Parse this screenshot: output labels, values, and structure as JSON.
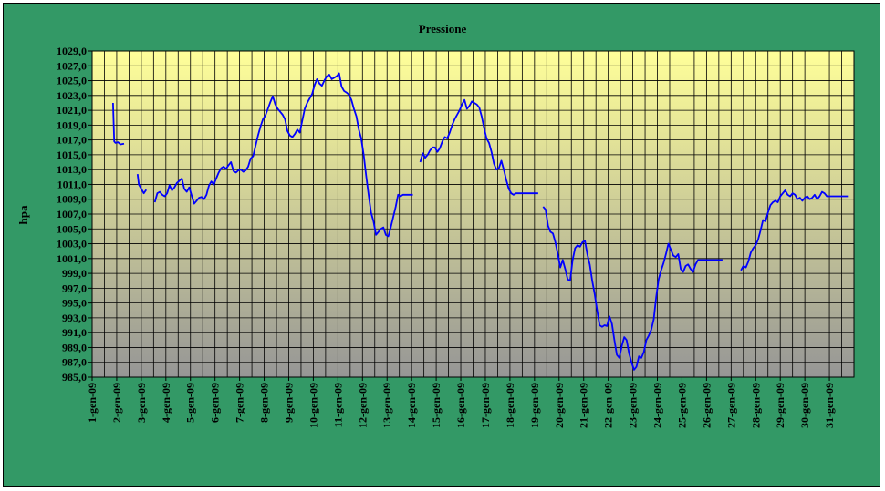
{
  "chart_data": {
    "type": "line",
    "title": "Pressione",
    "ylabel": "hpa",
    "xlabel": "",
    "ylim": [
      985,
      1029
    ],
    "y_tick_step": 2,
    "y_ticks": [
      "985,0",
      "987,0",
      "989,0",
      "991,0",
      "993,0",
      "995,0",
      "997,0",
      "999,0",
      "1001,0",
      "1003,0",
      "1005,0",
      "1007,0",
      "1009,0",
      "1011,0",
      "1013,0",
      "1015,0",
      "1017,0",
      "1019,0",
      "1021,0",
      "1023,0",
      "1025,0",
      "1027,0",
      "1029,0"
    ],
    "x_labels": [
      "1-gen-09",
      "2-gen-09",
      "3-gen-09",
      "4-gen-09",
      "5-gen-09",
      "6-gen-09",
      "7-gen-09",
      "8-gen-09",
      "9-gen-09",
      "10-gen-09",
      "11-gen-09",
      "12-gen-09",
      "13-gen-09",
      "14-gen-09",
      "15-gen-09",
      "16-gen-09",
      "17-gen-09",
      "18-gen-09",
      "19-gen-09",
      "20-gen-09",
      "21-gen-09",
      "22-gen-09",
      "23-gen-09",
      "24-gen-09",
      "25-gen-09",
      "26-gen-09",
      "27-gen-09",
      "28-gen-09",
      "29-gen-09",
      "30-gen-09",
      "31-gen-09"
    ],
    "grid": true,
    "line_color": "#0000ff",
    "frame_color": "#339966",
    "gradient_top": "#ffff99",
    "gradient_bottom": "#969696",
    "segments": [
      {
        "x": [
          1.85,
          1.9,
          1.95,
          2.05,
          2.15,
          2.3
        ],
        "y": [
          1022,
          1016.8,
          1016.6,
          1016.7,
          1016.4,
          1016.5
        ]
      },
      {
        "x": [
          2.85,
          2.9,
          3.0,
          3.1,
          3.2
        ],
        "y": [
          1012.4,
          1011.0,
          1010.4,
          1009.8,
          1010.3
        ]
      },
      {
        "x": [
          3.55,
          3.65,
          3.75,
          3.85,
          3.95,
          4.05,
          4.15,
          4.25,
          4.35,
          4.45,
          4.55,
          4.65,
          4.75,
          4.85,
          4.95,
          5.05,
          5.15,
          5.25,
          5.35,
          5.45,
          5.55,
          5.65,
          5.75,
          5.85,
          5.95,
          6.05,
          6.15,
          6.25,
          6.35,
          6.45,
          6.55,
          6.65,
          6.75,
          6.85,
          6.95,
          7.05,
          7.15,
          7.25,
          7.35,
          7.45,
          7.55,
          7.65,
          7.75,
          7.85,
          7.95,
          8.05,
          8.15,
          8.25,
          8.35,
          8.45,
          8.55,
          8.65,
          8.75,
          8.85,
          8.95,
          9.05,
          9.15,
          9.25,
          9.35,
          9.45,
          9.55,
          9.65,
          9.75,
          9.85,
          9.95,
          10.05,
          10.15,
          10.25,
          10.35,
          10.45,
          10.55,
          10.65,
          10.75,
          10.85,
          10.95,
          11.05,
          11.15,
          11.25,
          11.35,
          11.45,
          11.55,
          11.65,
          11.75,
          11.85,
          11.95,
          12.05,
          12.15,
          12.25,
          12.35,
          12.45,
          12.55,
          12.65,
          12.75,
          12.85,
          12.95,
          13.05,
          13.15,
          13.25,
          13.35,
          13.45,
          13.55,
          13.65,
          13.75,
          13.85,
          13.95,
          14.05
        ],
        "y": [
          1008.6,
          1009.8,
          1010.0,
          1009.6,
          1009.4,
          1009.8,
          1010.9,
          1010.2,
          1010.6,
          1011.2,
          1011.5,
          1011.8,
          1010.4,
          1010.0,
          1010.6,
          1009.5,
          1008.4,
          1008.8,
          1009.2,
          1009.3,
          1009.0,
          1009.6,
          1010.8,
          1011.4,
          1011.0,
          1011.8,
          1012.6,
          1013.2,
          1013.4,
          1013.1,
          1013.6,
          1014.0,
          1012.8,
          1012.6,
          1012.9,
          1013.0,
          1012.7,
          1012.9,
          1013.4,
          1014.5,
          1014.8,
          1016.2,
          1017.6,
          1018.8,
          1019.8,
          1020.3,
          1021.2,
          1022.1,
          1022.9,
          1021.8,
          1021.2,
          1020.8,
          1020.4,
          1019.8,
          1018.2,
          1017.6,
          1017.4,
          1017.8,
          1018.4,
          1018.0,
          1019.6,
          1021.2,
          1022.0,
          1022.6,
          1023.2,
          1024.4,
          1025.2,
          1024.6,
          1024.3,
          1025.0,
          1025.6,
          1025.8,
          1025.2,
          1025.4,
          1025.6,
          1026.0,
          1024.2,
          1023.6,
          1023.4,
          1023.1,
          1022.4,
          1021.2,
          1020.2,
          1018.4,
          1017.2,
          1015.0,
          1012.2,
          1009.6,
          1007.2,
          1006.0,
          1004.2,
          1004.6,
          1005.0,
          1005.2,
          1004.2,
          1004.0,
          1005.2,
          1006.6,
          1008.0,
          1009.6,
          1009.4,
          1009.6,
          1009.6,
          1009.6,
          1009.6,
          1009.6
        ]
      },
      {
        "x": [
          14.35,
          14.45,
          14.55,
          14.65,
          14.75,
          14.85,
          14.95,
          15.05,
          15.15,
          15.25,
          15.35,
          15.45,
          15.55,
          15.65,
          15.75,
          15.85,
          15.95,
          16.05,
          16.15,
          16.25,
          16.35,
          16.45,
          16.55,
          16.65,
          16.75,
          16.85,
          16.95,
          17.05,
          17.15,
          17.25,
          17.35,
          17.45,
          17.55,
          17.65,
          17.75,
          17.85,
          17.95,
          18.05,
          18.15,
          18.25,
          18.35,
          18.45,
          18.55,
          18.65,
          18.75,
          18.85,
          18.95,
          19.05,
          19.15
        ],
        "y": [
          1014.0,
          1015.2,
          1014.6,
          1015.0,
          1015.6,
          1016.0,
          1016.0,
          1015.4,
          1015.9,
          1016.8,
          1017.4,
          1017.2,
          1018.0,
          1019.0,
          1019.8,
          1020.4,
          1021.0,
          1021.8,
          1022.4,
          1021.2,
          1021.6,
          1022.2,
          1022.0,
          1021.8,
          1021.4,
          1020.2,
          1018.6,
          1017.2,
          1016.6,
          1015.4,
          1013.8,
          1013.0,
          1013.2,
          1014.2,
          1013.0,
          1011.6,
          1010.4,
          1009.8,
          1009.6,
          1009.8,
          1009.8,
          1009.8,
          1009.8,
          1009.8,
          1009.8,
          1009.8,
          1009.8,
          1009.8,
          1009.8
        ]
      },
      {
        "x": [
          19.35,
          19.45,
          19.55,
          19.65,
          19.75,
          19.85,
          19.95,
          20.05,
          20.15,
          20.25,
          20.35,
          20.45,
          20.55,
          20.65,
          20.75,
          20.85,
          20.95,
          21.05,
          21.15,
          21.25,
          21.35,
          21.45,
          21.55,
          21.65,
          21.75,
          21.85,
          21.95,
          22.05,
          22.15,
          22.25,
          22.35,
          22.45,
          22.55,
          22.65,
          22.75,
          22.85,
          22.95,
          23.05,
          23.15,
          23.25,
          23.35,
          23.45,
          23.55,
          23.65,
          23.75,
          23.85,
          23.95,
          24.05,
          24.15,
          24.25,
          24.35,
          24.45,
          24.55,
          24.65,
          24.75,
          24.85,
          24.95,
          25.05,
          25.15,
          25.25,
          25.35,
          25.45,
          25.55,
          25.65,
          25.75,
          25.85,
          25.95,
          26.05,
          26.15,
          26.25,
          26.35,
          26.45,
          26.55,
          26.65
        ],
        "y": [
          1008.0,
          1007.6,
          1005.4,
          1004.6,
          1004.4,
          1003.2,
          1001.6,
          999.8,
          1000.8,
          999.6,
          998.2,
          998.0,
          1000.8,
          1002.4,
          1002.8,
          1002.6,
          1003.2,
          1003.4,
          1001.6,
          1000.2,
          998.0,
          996.2,
          994.0,
          992.0,
          991.8,
          992.0,
          991.9,
          993.2,
          992.2,
          990.0,
          988.0,
          987.6,
          989.2,
          990.4,
          990.0,
          988.2,
          987.0,
          986.0,
          986.4,
          987.8,
          987.6,
          988.4,
          990.0,
          990.6,
          991.4,
          992.8,
          995.8,
          998.2,
          999.4,
          1000.4,
          1001.6,
          1003.0,
          1002.2,
          1001.4,
          1001.2,
          1001.6,
          999.6,
          999.2,
          1000.0,
          1000.2,
          999.6,
          999.2,
          1000.2,
          1000.8,
          1000.8,
          1000.8,
          1000.8,
          1000.8,
          1000.8,
          1000.8,
          1000.8,
          1000.8,
          1000.8,
          1000.8
        ]
      },
      {
        "x": [
          27.4,
          27.5,
          27.6,
          27.7,
          27.8,
          27.9,
          28.0,
          28.1,
          28.2,
          28.3,
          28.4,
          28.5,
          28.6,
          28.7,
          28.8,
          28.9,
          29.0,
          29.1,
          29.2,
          29.3,
          29.4,
          29.5,
          29.6,
          29.7,
          29.8,
          29.9,
          30.0,
          30.1,
          30.2,
          30.3,
          30.4,
          30.5,
          30.6,
          30.7,
          30.8,
          30.9,
          31.0,
          31.1,
          31.2,
          31.3,
          31.4,
          31.5,
          31.6,
          31.7,
          31.75
        ],
        "y": [
          999.4,
          1000.0,
          999.8,
          1000.6,
          1001.8,
          1002.4,
          1002.8,
          1003.6,
          1004.8,
          1006.2,
          1006.0,
          1007.2,
          1008.2,
          1008.6,
          1008.8,
          1008.6,
          1009.4,
          1009.8,
          1010.2,
          1009.6,
          1009.4,
          1009.8,
          1009.6,
          1009.0,
          1009.2,
          1008.8,
          1009.2,
          1009.4,
          1009.0,
          1009.2,
          1009.6,
          1009.0,
          1009.4,
          1010.0,
          1009.8,
          1009.4,
          1009.4,
          1009.4,
          1009.4,
          1009.4,
          1009.4,
          1009.4,
          1009.4,
          1009.4,
          1009.4
        ]
      }
    ]
  }
}
